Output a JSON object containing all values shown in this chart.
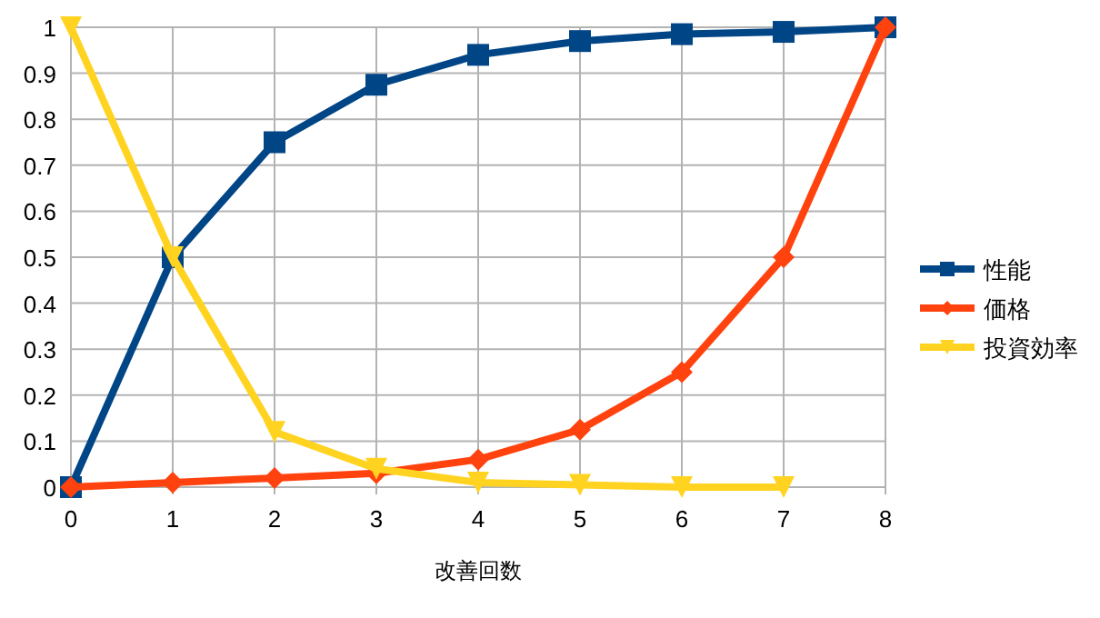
{
  "chart_data": {
    "type": "line",
    "xlabel": "改善回数",
    "x": [
      0,
      1,
      2,
      3,
      4,
      5,
      6,
      7,
      8
    ],
    "xlim": [
      0,
      8
    ],
    "xticks": [
      0,
      1,
      2,
      3,
      4,
      5,
      6,
      7,
      8
    ],
    "ylim": [
      0,
      1
    ],
    "yticks": [
      0,
      0.1,
      0.2,
      0.3,
      0.4,
      0.5,
      0.6,
      0.7,
      0.8,
      0.9,
      1
    ],
    "grid": true,
    "legend": "right",
    "series": [
      {
        "name": "性能",
        "color": "#004586",
        "marker": "square",
        "values": [
          0,
          0.5,
          0.75,
          0.875,
          0.94,
          0.97,
          0.985,
          0.99,
          1
        ]
      },
      {
        "name": "価格",
        "color": "#ff420e",
        "marker": "diamond",
        "values": [
          0,
          0.01,
          0.02,
          0.03,
          0.06,
          0.125,
          0.25,
          0.5,
          1
        ]
      },
      {
        "name": "投資効率",
        "color": "#ffd320",
        "marker": "triangle",
        "x": [
          0,
          1,
          2,
          3,
          4,
          5,
          6,
          7
        ],
        "values": [
          1,
          0.5,
          0.12,
          0.04,
          0.01,
          0.005,
          0,
          0
        ]
      }
    ]
  }
}
